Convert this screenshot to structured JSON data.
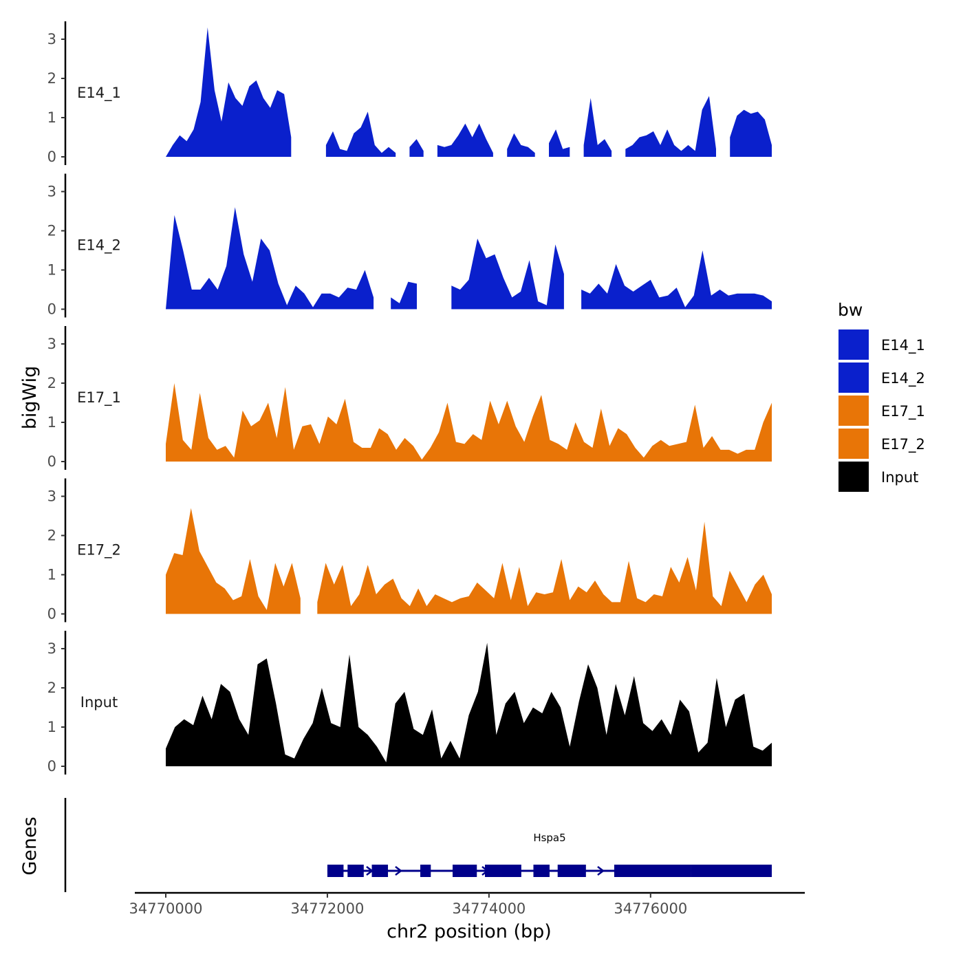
{
  "chart_data": {
    "type": "area",
    "title": "",
    "ylabel": "bigWig",
    "xlabel": "chr2 position (bp)",
    "genes_label": "Genes",
    "x_range": [
      34770000,
      34777500
    ],
    "xlim": [
      34769600,
      34777900
    ],
    "x_ticks": [
      34770000,
      34772000,
      34774000,
      34776000
    ],
    "x_tick_labels": [
      "34770000",
      "34772000",
      "34774000",
      "34776000"
    ],
    "ylim": [
      0,
      3.4
    ],
    "y_ticks": [
      0,
      1,
      2,
      3
    ],
    "y_tick_labels": [
      "0",
      "1",
      "2",
      "3"
    ],
    "legend": {
      "title": "bw",
      "entries": [
        {
          "label": "E14_1",
          "color": "#0a20cc"
        },
        {
          "label": "E14_2",
          "color": "#0a20cc"
        },
        {
          "label": "E17_1",
          "color": "#e87507"
        },
        {
          "label": "E17_2",
          "color": "#e87507"
        },
        {
          "label": "Input",
          "color": "#000000"
        }
      ]
    },
    "series": [
      {
        "name": "E14_1",
        "color": "#0a20cc",
        "values": [
          0,
          0.3,
          0.55,
          0.4,
          0.7,
          1.4,
          3.3,
          1.7,
          0.9,
          1.9,
          1.5,
          1.3,
          1.8,
          1.95,
          1.5,
          1.25,
          1.7,
          1.6,
          0.5,
          null,
          null,
          null,
          null,
          0.3,
          0.65,
          0.2,
          0.15,
          0.6,
          0.75,
          1.15,
          0.3,
          0.1,
          0.25,
          0.1,
          null,
          0.25,
          0.45,
          0.15,
          null,
          0.3,
          0.25,
          0.3,
          0.55,
          0.85,
          0.5,
          0.85,
          0.45,
          0.1,
          null,
          0.2,
          0.6,
          0.3,
          0.25,
          0.1,
          null,
          0.35,
          0.7,
          0.2,
          0.25,
          null,
          0.3,
          1.5,
          0.3,
          0.45,
          0.15,
          null,
          0.2,
          0.3,
          0.5,
          0.55,
          0.65,
          0.3,
          0.7,
          0.3,
          0.15,
          0.3,
          0.15,
          1.2,
          1.55,
          0.2,
          null,
          0.5,
          1.05,
          1.2,
          1.1,
          1.15,
          0.95,
          0.3
        ]
      },
      {
        "name": "E14_2",
        "color": "#0a20cc",
        "values": [
          0,
          2.4,
          1.5,
          0.5,
          0.5,
          0.8,
          0.5,
          1.1,
          2.6,
          1.4,
          0.7,
          1.8,
          1.5,
          0.65,
          0.1,
          0.6,
          0.4,
          0.05,
          0.4,
          0.4,
          0.3,
          0.55,
          0.5,
          1.0,
          0.3,
          null,
          0.3,
          0.15,
          0.7,
          0.65,
          null,
          null,
          null,
          0.6,
          0.5,
          0.75,
          1.8,
          1.3,
          1.4,
          0.8,
          0.3,
          0.45,
          1.25,
          0.2,
          0.1,
          1.65,
          0.9,
          null,
          0.5,
          0.4,
          0.65,
          0.4,
          1.15,
          0.6,
          0.45,
          0.6,
          0.75,
          0.3,
          0.35,
          0.55,
          0.05,
          0.35,
          1.5,
          0.35,
          0.5,
          0.35,
          0.4,
          0.4,
          0.4,
          0.35,
          0.2
        ]
      },
      {
        "name": "E17_1",
        "color": "#e87507",
        "values": [
          0.45,
          2.0,
          0.55,
          0.3,
          1.75,
          0.6,
          0.3,
          0.4,
          0.1,
          1.3,
          0.9,
          1.05,
          1.5,
          0.6,
          1.9,
          0.3,
          0.9,
          0.95,
          0.45,
          1.15,
          0.95,
          1.6,
          0.5,
          0.35,
          0.35,
          0.85,
          0.7,
          0.3,
          0.6,
          0.4,
          0.05,
          0.35,
          0.75,
          1.5,
          0.5,
          0.45,
          0.7,
          0.55,
          1.55,
          0.95,
          1.55,
          0.9,
          0.5,
          1.15,
          1.7,
          0.55,
          0.45,
          0.3,
          1.0,
          0.5,
          0.35,
          1.35,
          0.4,
          0.85,
          0.7,
          0.35,
          0.1,
          0.4,
          0.55,
          0.4,
          0.45,
          0.5,
          1.45,
          0.35,
          0.65,
          0.3,
          0.3,
          0.2,
          0.3,
          0.3,
          1.0,
          1.5
        ]
      },
      {
        "name": "E17_2",
        "color": "#e87507",
        "values": [
          1.0,
          1.55,
          1.5,
          2.7,
          1.6,
          1.2,
          0.8,
          0.65,
          0.35,
          0.45,
          1.4,
          0.45,
          0.1,
          1.3,
          0.7,
          1.3,
          0.4,
          null,
          0.3,
          1.3,
          0.75,
          1.25,
          0.2,
          0.5,
          1.25,
          0.5,
          0.75,
          0.9,
          0.4,
          0.2,
          0.65,
          0.2,
          0.5,
          0.4,
          0.3,
          0.4,
          0.45,
          0.8,
          0.6,
          0.4,
          1.3,
          0.35,
          1.2,
          0.2,
          0.55,
          0.5,
          0.55,
          1.4,
          0.35,
          0.7,
          0.55,
          0.85,
          0.5,
          0.3,
          0.3,
          1.35,
          0.4,
          0.3,
          0.5,
          0.45,
          1.2,
          0.8,
          1.45,
          0.6,
          2.35,
          0.45,
          0.2,
          1.1,
          0.7,
          0.3,
          0.75,
          1.0,
          0.5
        ]
      },
      {
        "name": "Input",
        "color": "#000000",
        "values": [
          0.45,
          1.0,
          1.2,
          1.05,
          1.8,
          1.2,
          2.1,
          1.9,
          1.2,
          0.8,
          2.6,
          2.75,
          1.6,
          0.3,
          0.2,
          0.7,
          1.1,
          2.0,
          1.1,
          1.0,
          2.85,
          1.0,
          0.8,
          0.5,
          0.1,
          1.6,
          1.9,
          0.95,
          0.8,
          1.45,
          0.2,
          0.65,
          0.2,
          1.3,
          1.9,
          3.15,
          0.8,
          1.6,
          1.9,
          1.1,
          1.5,
          1.35,
          1.9,
          1.5,
          0.5,
          1.65,
          2.6,
          2.0,
          0.8,
          2.1,
          1.3,
          2.3,
          1.1,
          0.9,
          1.2,
          0.8,
          1.7,
          1.4,
          0.35,
          0.6,
          2.25,
          1.0,
          1.7,
          1.85,
          0.5,
          0.4,
          0.6
        ]
      }
    ],
    "gene": {
      "name": "Hspa5",
      "start": 34772000,
      "end": 34777500,
      "strand": "+",
      "color": "#00008b",
      "exons": [
        [
          34772000,
          34772200
        ],
        [
          34772250,
          34772450
        ],
        [
          34772550,
          34772750
        ],
        [
          34773150,
          34773280
        ],
        [
          34773550,
          34773850
        ],
        [
          34773950,
          34774150
        ],
        [
          34774150,
          34774400
        ],
        [
          34774550,
          34774750
        ],
        [
          34774850,
          34775200
        ],
        [
          34775550,
          34776500
        ],
        [
          34776500,
          34777500
        ]
      ]
    }
  }
}
